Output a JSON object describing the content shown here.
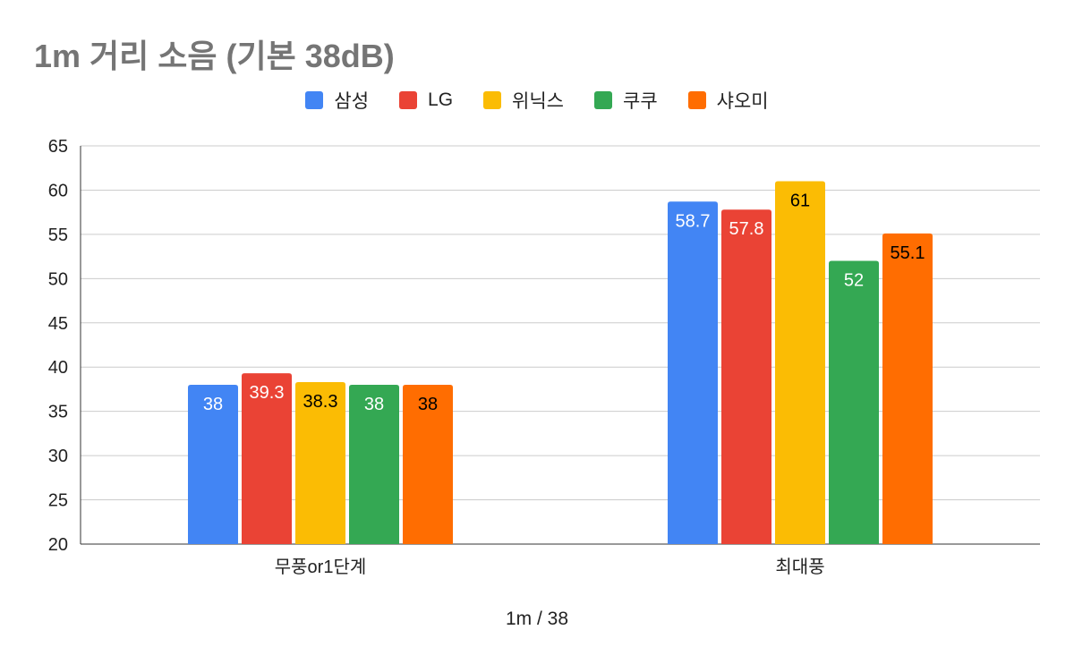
{
  "chart_data": {
    "type": "bar",
    "title": "1m 거리 소음 (기본 38dB)",
    "xlabel": "1m / 38",
    "ylabel": "",
    "categories": [
      "무풍or1단계",
      "최대풍"
    ],
    "series": [
      {
        "name": "삼성",
        "color": "#4285f4",
        "label_color": "#ffffff",
        "values": [
          38,
          58.7
        ],
        "labels": [
          "38",
          "58.7"
        ]
      },
      {
        "name": "LG",
        "color": "#ea4335",
        "label_color": "#ffffff",
        "values": [
          39.3,
          57.8
        ],
        "labels": [
          "39.3",
          "57.8"
        ]
      },
      {
        "name": "위닉스",
        "color": "#fbbc04",
        "label_color": "#000000",
        "values": [
          38.3,
          61
        ],
        "labels": [
          "38.3",
          "61"
        ]
      },
      {
        "name": "쿠쿠",
        "color": "#34a853",
        "label_color": "#ffffff",
        "values": [
          38,
          52
        ],
        "labels": [
          "38",
          "52"
        ]
      },
      {
        "name": "샤오미",
        "color": "#ff6d01",
        "label_color": "#000000",
        "values": [
          38,
          55.1
        ],
        "labels": [
          "38",
          "55.1"
        ]
      }
    ],
    "ylim": [
      20,
      65
    ],
    "yticks": [
      "20",
      "25",
      "30",
      "35",
      "40",
      "45",
      "50",
      "55",
      "60",
      "65"
    ],
    "grid": true,
    "legend_position": "top"
  }
}
